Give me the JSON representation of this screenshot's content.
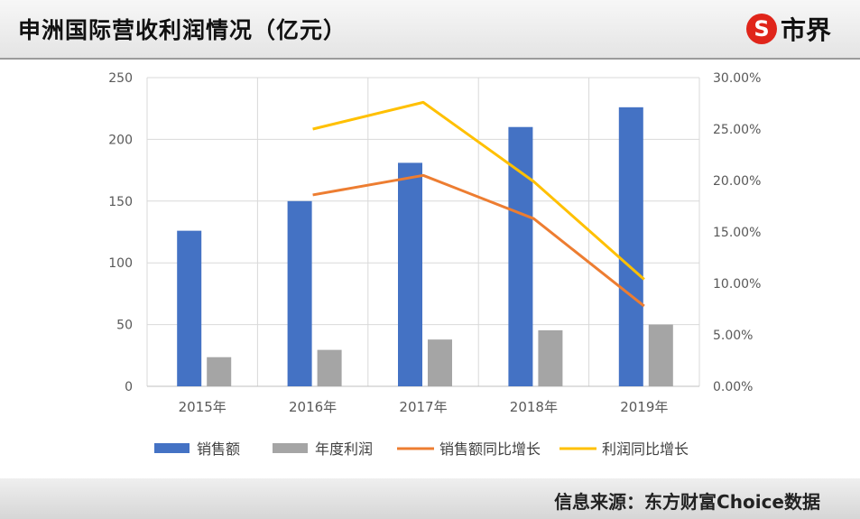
{
  "header": {
    "title": "申洲国际营收利润情况（亿元）"
  },
  "brand": {
    "logo_glyph": "S",
    "name": "市界"
  },
  "footer": {
    "source": "信息来源：东方财富Choice数据"
  },
  "colors": {
    "sales": "#4472C4",
    "profit": "#A5A5A5",
    "sales_growth": "#ED7D31",
    "profit_growth": "#FFC000"
  },
  "chart_data": {
    "type": "bar",
    "categories": [
      "2015年",
      "2016年",
      "2017年",
      "2018年",
      "2019年"
    ],
    "series": [
      {
        "name": "销售额",
        "type": "bar",
        "axis": "left",
        "values": [
          126,
          150,
          181,
          210,
          226
        ]
      },
      {
        "name": "年度利润",
        "type": "bar",
        "axis": "left",
        "values": [
          23.6,
          29.5,
          37.9,
          45.4,
          50.0
        ]
      },
      {
        "name": "销售额同比增长",
        "type": "line",
        "axis": "right",
        "values": [
          null,
          18.6,
          20.5,
          16.3,
          7.8
        ]
      },
      {
        "name": "利润同比增长",
        "type": "line",
        "axis": "right",
        "values": [
          null,
          25.0,
          27.6,
          19.9,
          10.4
        ]
      }
    ],
    "left_axis": {
      "ylim": [
        0,
        250
      ],
      "ticks": [
        "0",
        "50",
        "100",
        "150",
        "200",
        "250"
      ]
    },
    "right_axis": {
      "ylim": [
        0,
        30
      ],
      "ticks": [
        "0.00%",
        "5.00%",
        "10.00%",
        "15.00%",
        "20.00%",
        "25.00%",
        "30.00%"
      ]
    },
    "grid": true,
    "legend_position": "bottom"
  }
}
